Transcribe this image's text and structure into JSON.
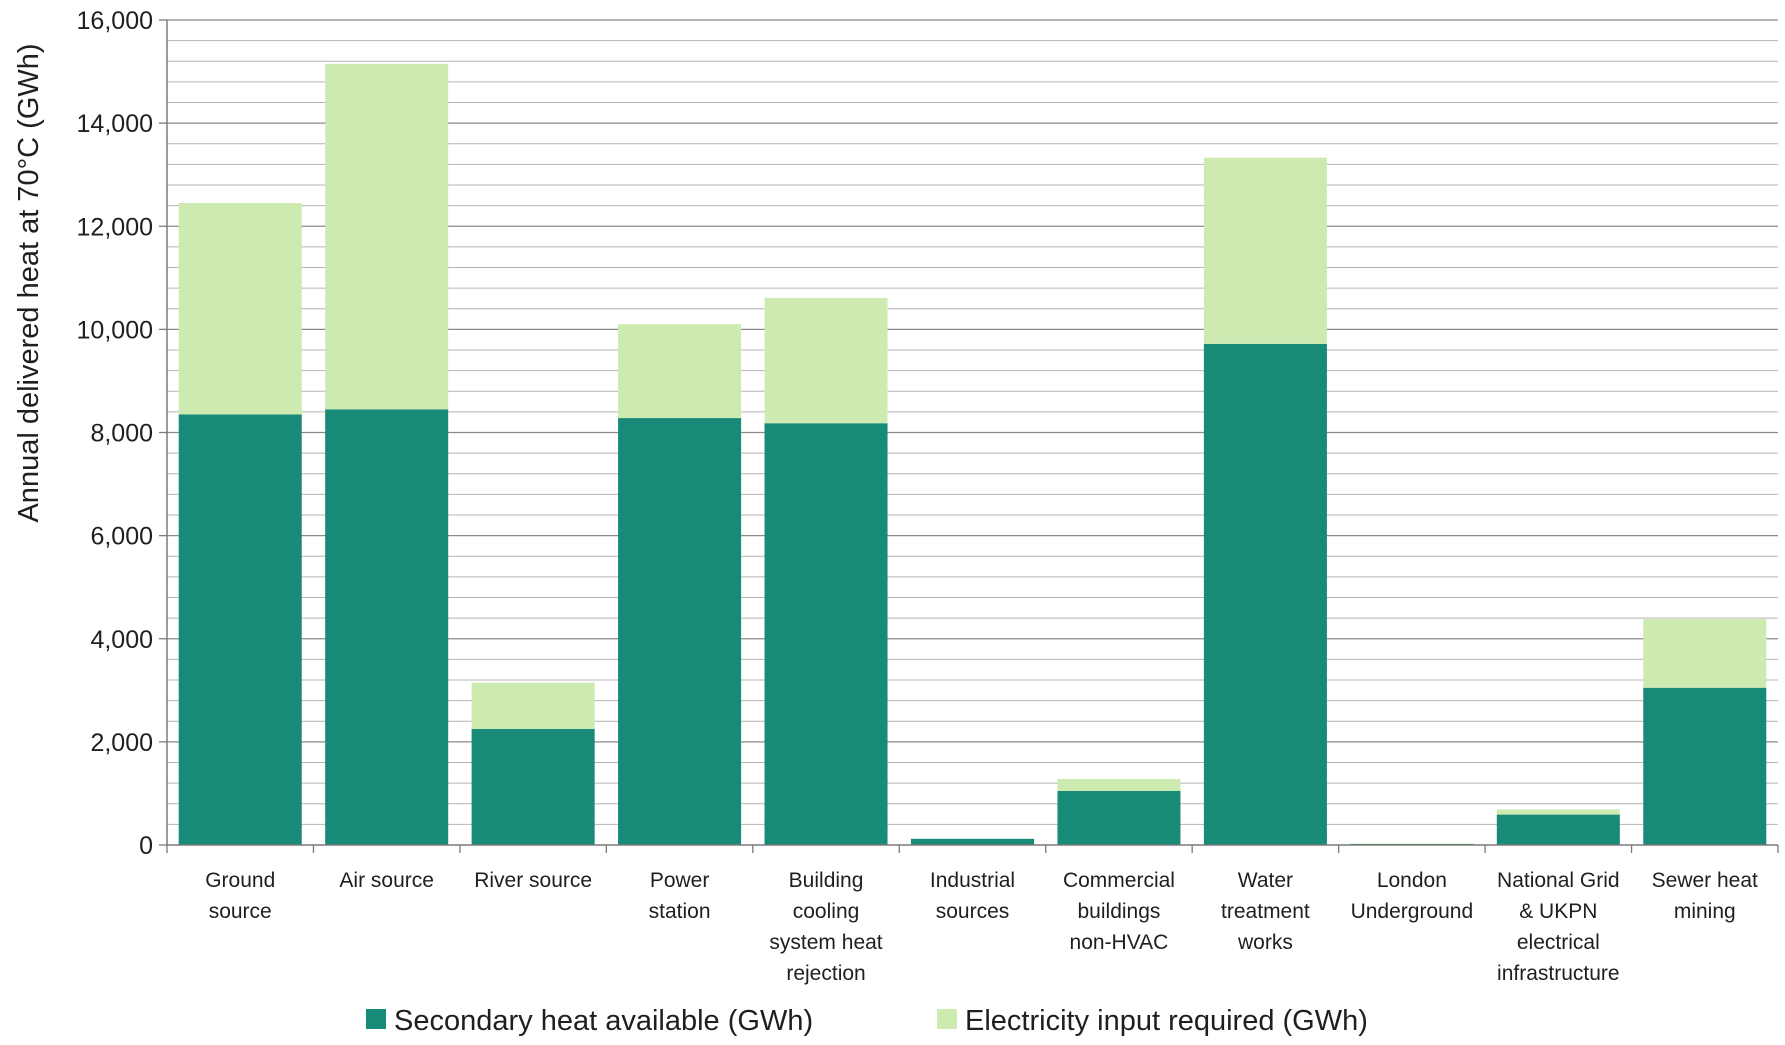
{
  "chart_data": {
    "type": "bar",
    "stacked": true,
    "title": "",
    "xlabel": "",
    "ylabel": "Annual delivered heat at 70°C (GWh)",
    "ylim": [
      0,
      16000
    ],
    "yticks": [
      0,
      2000,
      4000,
      6000,
      8000,
      10000,
      12000,
      14000,
      16000
    ],
    "ytick_labels": [
      "0",
      "2,000",
      "4,000",
      "6,000",
      "8,000",
      "10,000",
      "12,000",
      "14,000",
      "16,000"
    ],
    "minor_gridline_step": 400,
    "grid": true,
    "legend_position": "bottom",
    "categories": [
      [
        "Ground",
        "source"
      ],
      [
        "Air source"
      ],
      [
        "River source"
      ],
      [
        "Power",
        "station"
      ],
      [
        "Building",
        "cooling",
        "system heat",
        "rejection"
      ],
      [
        "Industrial",
        "sources"
      ],
      [
        "Commercial",
        "buildings",
        "non-HVAC"
      ],
      [
        "Water",
        "treatment",
        "works"
      ],
      [
        "London",
        "Underground"
      ],
      [
        "National Grid",
        "& UKPN",
        "electrical",
        "infrastructure"
      ],
      [
        "Sewer heat",
        "mining"
      ]
    ],
    "series": [
      {
        "name": "Secondary heat available (GWh)",
        "color": "#178a78",
        "values": [
          8350,
          8450,
          2250,
          8280,
          8180,
          120,
          1050,
          9720,
          20,
          590,
          3050
        ]
      },
      {
        "name": "Electricity input required (GWh)",
        "color": "#cdebb0",
        "values": [
          4100,
          6700,
          900,
          1820,
          2430,
          0,
          230,
          3610,
          10,
          100,
          1330
        ]
      }
    ]
  }
}
